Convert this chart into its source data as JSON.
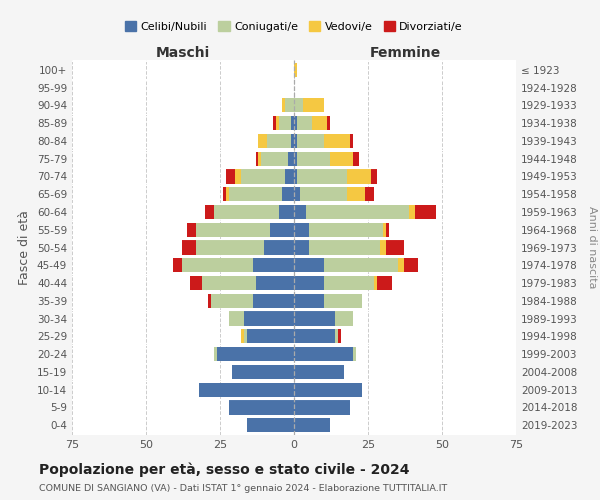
{
  "age_groups": [
    "0-4",
    "5-9",
    "10-14",
    "15-19",
    "20-24",
    "25-29",
    "30-34",
    "35-39",
    "40-44",
    "45-49",
    "50-54",
    "55-59",
    "60-64",
    "65-69",
    "70-74",
    "75-79",
    "80-84",
    "85-89",
    "90-94",
    "95-99",
    "100+"
  ],
  "birth_years": [
    "2019-2023",
    "2014-2018",
    "2009-2013",
    "2004-2008",
    "1999-2003",
    "1994-1998",
    "1989-1993",
    "1984-1988",
    "1979-1983",
    "1974-1978",
    "1969-1973",
    "1964-1968",
    "1959-1963",
    "1954-1958",
    "1949-1953",
    "1944-1948",
    "1939-1943",
    "1934-1938",
    "1929-1933",
    "1924-1928",
    "≤ 1923"
  ],
  "colors": {
    "celibi": "#4a72a8",
    "coniugati": "#bccf9e",
    "vedovi": "#f5c842",
    "divorziati": "#cc1a1a"
  },
  "maschi": {
    "celibi": [
      16,
      22,
      32,
      21,
      26,
      16,
      17,
      14,
      13,
      14,
      10,
      8,
      5,
      4,
      3,
      2,
      1,
      1,
      0,
      0,
      0
    ],
    "coniugati": [
      0,
      0,
      0,
      0,
      1,
      1,
      5,
      14,
      18,
      24,
      23,
      25,
      22,
      18,
      15,
      9,
      8,
      4,
      3,
      0,
      0
    ],
    "vedovi": [
      0,
      0,
      0,
      0,
      0,
      1,
      0,
      0,
      0,
      0,
      0,
      0,
      0,
      1,
      2,
      1,
      3,
      1,
      1,
      0,
      0
    ],
    "divorziati": [
      0,
      0,
      0,
      0,
      0,
      0,
      0,
      1,
      4,
      3,
      5,
      3,
      3,
      1,
      3,
      1,
      0,
      1,
      0,
      0,
      0
    ]
  },
  "femmine": {
    "celibi": [
      12,
      19,
      23,
      17,
      20,
      14,
      14,
      10,
      10,
      10,
      5,
      5,
      4,
      2,
      1,
      1,
      1,
      1,
      0,
      0,
      0
    ],
    "coniugati": [
      0,
      0,
      0,
      0,
      1,
      1,
      6,
      13,
      17,
      25,
      24,
      25,
      35,
      16,
      17,
      11,
      9,
      5,
      3,
      0,
      0
    ],
    "vedovi": [
      0,
      0,
      0,
      0,
      0,
      0,
      0,
      0,
      1,
      2,
      2,
      1,
      2,
      6,
      8,
      8,
      9,
      5,
      7,
      0,
      1
    ],
    "divorziati": [
      0,
      0,
      0,
      0,
      0,
      1,
      0,
      0,
      5,
      5,
      6,
      1,
      7,
      3,
      2,
      2,
      1,
      1,
      0,
      0,
      0
    ]
  },
  "xlim": 75,
  "title": "Popolazione per età, sesso e stato civile - 2024",
  "subtitle": "COMUNE DI SANGIANO (VA) - Dati ISTAT 1° gennaio 2024 - Elaborazione TUTTITALIA.IT",
  "ylabel_left": "Fasce di età",
  "ylabel_right": "Anni di nascita",
  "xlabel_maschi": "Maschi",
  "xlabel_femmine": "Femmine",
  "legend_labels": [
    "Celibi/Nubili",
    "Coniugati/e",
    "Vedovi/e",
    "Divorziati/e"
  ],
  "bg_color": "#f5f5f5",
  "plot_bg": "#ffffff"
}
